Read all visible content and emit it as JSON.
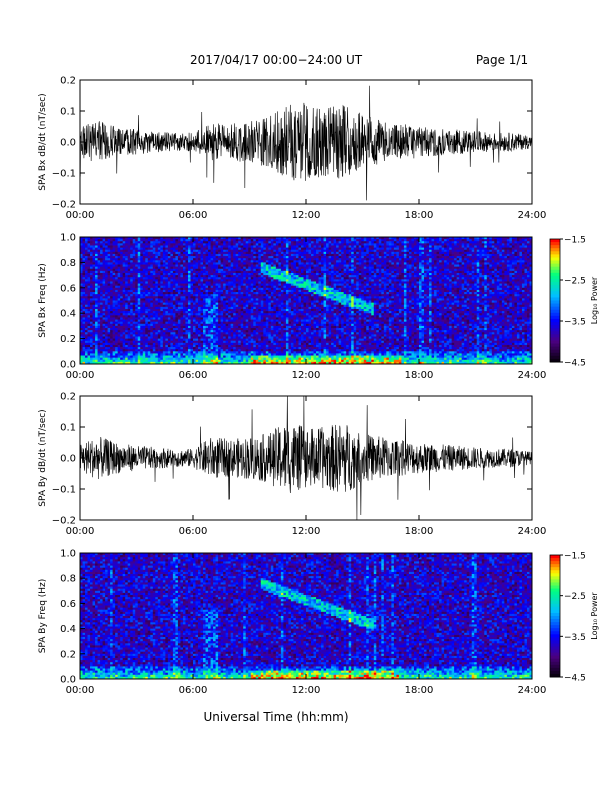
{
  "header": {
    "title": "2017/04/17  00:00−24:00 UT",
    "page": "Page 1/1"
  },
  "footer": {
    "xlabel": "Universal Time (hh:mm)"
  },
  "colors": {
    "trace": "#000000",
    "frame": "#000000",
    "colormap": [
      "#000000",
      "#4b0082",
      "#0000ff",
      "#00bfff",
      "#00ff80",
      "#ffff00",
      "#ff0000"
    ]
  },
  "chart_data": [
    {
      "type": "line",
      "name": "SPA Bx dB/dt",
      "ylabel": "SPA Bx dB/dt (nT/sec)",
      "ylim": [
        -0.2,
        0.2
      ],
      "yticks": [
        "0.2",
        "0.1",
        "0.0",
        "−0.1",
        "−0.2"
      ],
      "xticks": [
        "00:00",
        "06:00",
        "12:00",
        "18:00",
        "24:00"
      ],
      "xlim_hours": [
        0,
        24
      ],
      "envelope": {
        "hours": [
          0,
          1,
          2,
          3,
          4,
          5,
          6,
          7,
          8,
          9,
          10,
          11,
          12,
          13,
          14,
          15,
          16,
          17,
          18,
          19,
          20,
          21,
          22,
          23,
          24
        ],
        "amplitude": [
          0.05,
          0.07,
          0.045,
          0.04,
          0.035,
          0.03,
          0.03,
          0.06,
          0.06,
          0.07,
          0.08,
          0.12,
          0.13,
          0.11,
          0.12,
          0.09,
          0.07,
          0.06,
          0.05,
          0.045,
          0.04,
          0.035,
          0.03,
          0.03,
          0.02
        ]
      }
    },
    {
      "type": "heatmap",
      "name": "SPA Bx Freq",
      "ylabel": "SPA Bx Freq (Hz)",
      "ylim": [
        0.0,
        1.0
      ],
      "yticks": [
        "1.0",
        "0.8",
        "0.6",
        "0.4",
        "0.2",
        "0.0"
      ],
      "xticks": [
        "00:00",
        "06:00",
        "12:00",
        "18:00",
        "24:00"
      ],
      "colorbar": {
        "label": "Log₁₀ Power",
        "range": [
          -4.5,
          -1.5
        ],
        "ticks": [
          "−1.5",
          "−2.5",
          "−3.5",
          "−4.5"
        ]
      }
    },
    {
      "type": "line",
      "name": "SPA By dB/dt",
      "ylabel": "SPA By dB/dt (nT/sec)",
      "ylim": [
        -0.2,
        0.2
      ],
      "yticks": [
        "0.2",
        "0.1",
        "0.0",
        "−0.1",
        "−0.2"
      ],
      "xticks": [
        "00:00",
        "06:00",
        "12:00",
        "18:00",
        "24:00"
      ],
      "xlim_hours": [
        0,
        24
      ],
      "envelope": {
        "hours": [
          0,
          1,
          2,
          3,
          4,
          5,
          6,
          7,
          8,
          9,
          10,
          11,
          12,
          13,
          14,
          15,
          16,
          17,
          18,
          19,
          20,
          21,
          22,
          23,
          24
        ],
        "amplitude": [
          0.05,
          0.07,
          0.05,
          0.04,
          0.035,
          0.03,
          0.03,
          0.07,
          0.06,
          0.07,
          0.08,
          0.12,
          0.1,
          0.1,
          0.12,
          0.08,
          0.07,
          0.06,
          0.05,
          0.045,
          0.04,
          0.035,
          0.03,
          0.03,
          0.02
        ]
      }
    },
    {
      "type": "heatmap",
      "name": "SPA By Freq",
      "ylabel": "SPA By Freq (Hz)",
      "ylim": [
        0.0,
        1.0
      ],
      "yticks": [
        "1.0",
        "0.8",
        "0.6",
        "0.4",
        "0.2",
        "0.0"
      ],
      "xticks": [
        "00:00",
        "06:00",
        "12:00",
        "18:00",
        "24:00"
      ],
      "colorbar": {
        "label": "Log₁₀ Power",
        "range": [
          -4.5,
          -1.5
        ],
        "ticks": [
          "−1.5",
          "−2.5",
          "−3.5",
          "−4.5"
        ]
      }
    }
  ]
}
